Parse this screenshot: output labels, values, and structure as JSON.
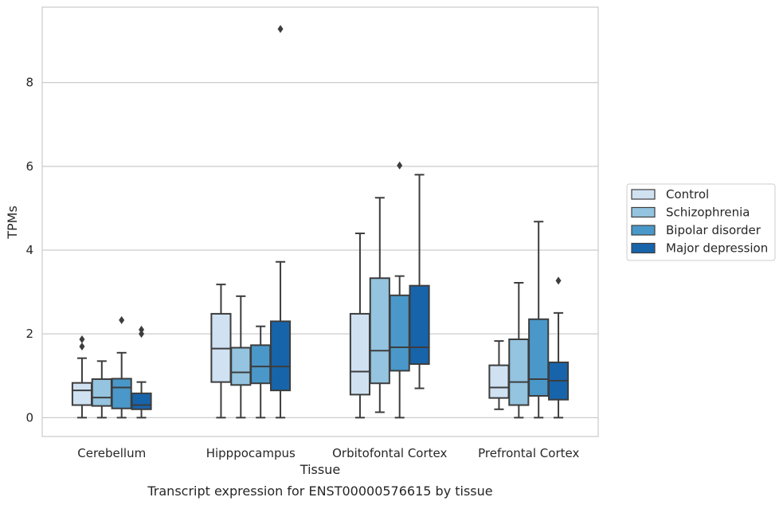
{
  "chart_data": {
    "type": "box",
    "xlabel": "Tissue",
    "ylabel": "TPMs",
    "caption": "Transcript expression for ENST00000576615 by tissue",
    "ylim": [
      -0.45,
      9.8
    ],
    "yticks": [
      0,
      2,
      4,
      6,
      8
    ],
    "grid": true,
    "legend_position": "right",
    "categories": [
      "Cerebellum",
      "Hipppocampus",
      "Orbitofontal Cortex",
      "Prefrontal Cortex"
    ],
    "series": [
      {
        "name": "Control",
        "color": "#d0e1f2",
        "boxes": [
          {
            "whislo": 0.0,
            "q1": 0.3,
            "med": 0.65,
            "q3": 0.83,
            "whishi": 1.42,
            "fliers": [
              1.7,
              1.87
            ]
          },
          {
            "whislo": 0.0,
            "q1": 0.85,
            "med": 1.65,
            "q3": 2.48,
            "whishi": 3.18,
            "fliers": []
          },
          {
            "whislo": 0.0,
            "q1": 0.55,
            "med": 1.1,
            "q3": 2.48,
            "whishi": 4.4,
            "fliers": []
          },
          {
            "whislo": 0.2,
            "q1": 0.47,
            "med": 0.72,
            "q3": 1.25,
            "whishi": 1.83,
            "fliers": []
          }
        ]
      },
      {
        "name": "Schizophrenia",
        "color": "#94c4df",
        "boxes": [
          {
            "whislo": 0.0,
            "q1": 0.28,
            "med": 0.48,
            "q3": 0.92,
            "whishi": 1.35,
            "fliers": []
          },
          {
            "whislo": 0.0,
            "q1": 0.78,
            "med": 1.08,
            "q3": 1.67,
            "whishi": 2.9,
            "fliers": []
          },
          {
            "whislo": 0.13,
            "q1": 0.82,
            "med": 1.6,
            "q3": 3.33,
            "whishi": 5.25,
            "fliers": []
          },
          {
            "whislo": 0.0,
            "q1": 0.3,
            "med": 0.85,
            "q3": 1.87,
            "whishi": 3.22,
            "fliers": []
          }
        ]
      },
      {
        "name": "Bipolar disorder",
        "color": "#4a98c9",
        "boxes": [
          {
            "whislo": 0.0,
            "q1": 0.22,
            "med": 0.72,
            "q3": 0.93,
            "whishi": 1.55,
            "fliers": [
              2.33
            ]
          },
          {
            "whislo": 0.0,
            "q1": 0.82,
            "med": 1.22,
            "q3": 1.73,
            "whishi": 2.18,
            "fliers": []
          },
          {
            "whislo": 0.0,
            "q1": 1.12,
            "med": 1.68,
            "q3": 2.92,
            "whishi": 3.38,
            "fliers": [
              6.02
            ]
          },
          {
            "whislo": 0.0,
            "q1": 0.52,
            "med": 0.92,
            "q3": 2.35,
            "whishi": 4.68,
            "fliers": []
          }
        ]
      },
      {
        "name": "Major depression",
        "color": "#1764ab",
        "boxes": [
          {
            "whislo": 0.0,
            "q1": 0.2,
            "med": 0.3,
            "q3": 0.58,
            "whishi": 0.85,
            "fliers": [
              2.0,
              2.1
            ]
          },
          {
            "whislo": 0.0,
            "q1": 0.65,
            "med": 1.22,
            "q3": 2.3,
            "whishi": 3.72,
            "fliers": [
              9.28
            ]
          },
          {
            "whislo": 0.7,
            "q1": 1.28,
            "med": 1.68,
            "q3": 3.15,
            "whishi": 5.8,
            "fliers": []
          },
          {
            "whislo": 0.0,
            "q1": 0.43,
            "med": 0.88,
            "q3": 1.32,
            "whishi": 2.5,
            "fliers": [
              3.27
            ]
          }
        ]
      }
    ]
  }
}
